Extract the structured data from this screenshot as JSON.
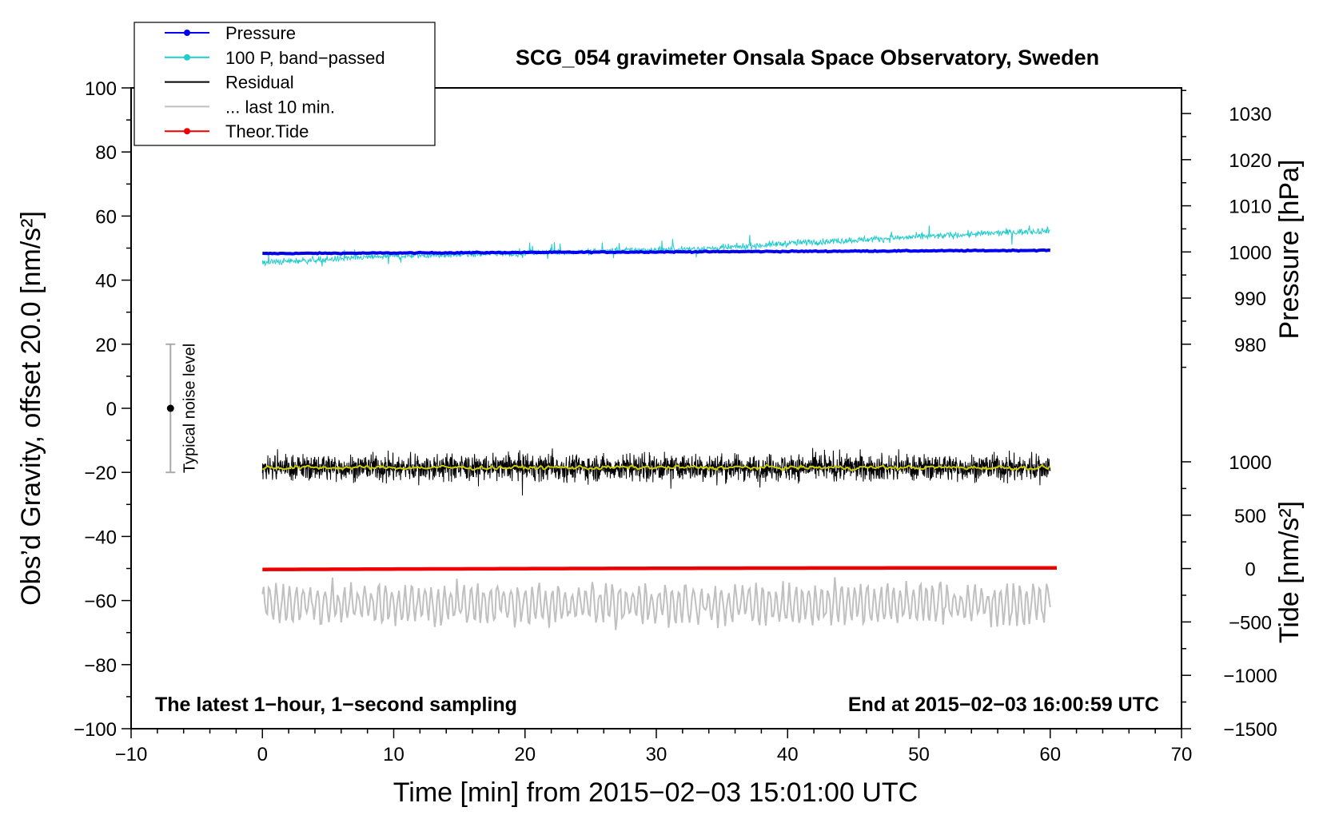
{
  "chart_data": {
    "type": "line",
    "title": "SCG_054 gravimeter Onsala Space Observatory, Sweden",
    "xlabel": "Time [min] from 2015−02−03 15:01:00 UTC",
    "ylabel_left": "Obs’d Gravity, offset 20.0 [nm/s²]",
    "ylabel_right_top": "Pressure [hPa]",
    "ylabel_right_bottom": "Tide [nm/s²]",
    "footer_left": "The latest 1−hour, 1−second sampling",
    "footer_right": "End at 2015−02−03 16:00:59 UTC",
    "xlim": [
      -10,
      70
    ],
    "ylim": [
      -100,
      100
    ],
    "x_ticks": [
      -10,
      0,
      10,
      20,
      30,
      40,
      50,
      60,
      70
    ],
    "x_tick_labels": [
      "−10",
      "0",
      "10",
      "20",
      "30",
      "40",
      "50",
      "60",
      "70"
    ],
    "y_ticks": [
      -100,
      -80,
      -60,
      -40,
      -20,
      0,
      20,
      40,
      60,
      80,
      100
    ],
    "y_tick_labels": [
      "−100",
      "−80",
      "−60",
      "−40",
      "−20",
      "0",
      "20",
      "40",
      "60",
      "80",
      "100"
    ],
    "pressure_axis": {
      "ticks": [
        980,
        990,
        1000,
        1010,
        1020,
        1030
      ],
      "labels": [
        "980",
        "990",
        "1000",
        "1010",
        "1020",
        "1030"
      ],
      "gravity_at": [
        {
          "hpa": 980,
          "g": 20
        },
        {
          "hpa": 1030,
          "g": 92
        }
      ]
    },
    "tide_axis": {
      "ticks": [
        -1500,
        -1000,
        -500,
        0,
        500,
        1000
      ],
      "labels": [
        "−1500",
        "−1000",
        "−500",
        "0",
        "500",
        "1000"
      ],
      "gravity_at": [
        {
          "nms2": -1500,
          "g": -100
        },
        {
          "nms2": 1000,
          "g": -16.7
        }
      ]
    },
    "legend": {
      "position": "top-left",
      "entries": [
        {
          "label": "Pressure",
          "color": "#0000ee",
          "marker": true
        },
        {
          "label": "100 P, band−passed",
          "color": "#22cccc",
          "marker": true
        },
        {
          "label": "Residual",
          "color": "#000000",
          "marker": false
        },
        {
          "label": "... last 10 min.",
          "color": "#c0c0c0",
          "marker": false
        },
        {
          "label": "Theor.Tide",
          "color": "#ee0000",
          "marker": true
        }
      ]
    },
    "noise_bar": {
      "label": "Typical noise level",
      "x": -7,
      "center": 0,
      "low": -20,
      "high": 20
    },
    "series": [
      {
        "name": "Pressure",
        "color": "#0000ee",
        "x_range": [
          0,
          60
        ],
        "start": 48.3,
        "end": 49.3,
        "noise": 0.15
      },
      {
        "name": "100 P, band−passed",
        "color": "#22cccc",
        "x_range": [
          0,
          60
        ],
        "points": [
          [
            0,
            45.5
          ],
          [
            5,
            46.5
          ],
          [
            10,
            47.5
          ],
          [
            15,
            48.0
          ],
          [
            20,
            48.5
          ],
          [
            25,
            49.0
          ],
          [
            30,
            49.5
          ],
          [
            35,
            50.0
          ],
          [
            40,
            51.5
          ],
          [
            45,
            52.5
          ],
          [
            50,
            53.5
          ],
          [
            55,
            54.5
          ],
          [
            60,
            55.5
          ]
        ],
        "noise": 1.0
      },
      {
        "name": "Residual",
        "color": "#000000",
        "x_range": [
          0,
          60
        ],
        "mean": -18.5,
        "amplitude": 4.0,
        "min": -33.5,
        "max": -4.5
      },
      {
        "name": "Residual smoothed",
        "color": "#cccc00",
        "x_range": [
          0,
          60
        ],
        "mean": -18.5,
        "noise": 0.5
      },
      {
        "name": "Theor.Tide",
        "color": "#ee0000",
        "x_range": [
          0,
          60.5
        ],
        "start": -50.3,
        "end": -49.8
      },
      {
        "name": "... last 10 min.",
        "color": "#c0c0c0",
        "x_range": [
          0,
          60
        ],
        "mean": -61.0,
        "amplitude": 5.0,
        "min": -73.0,
        "max": -50.5
      }
    ]
  }
}
